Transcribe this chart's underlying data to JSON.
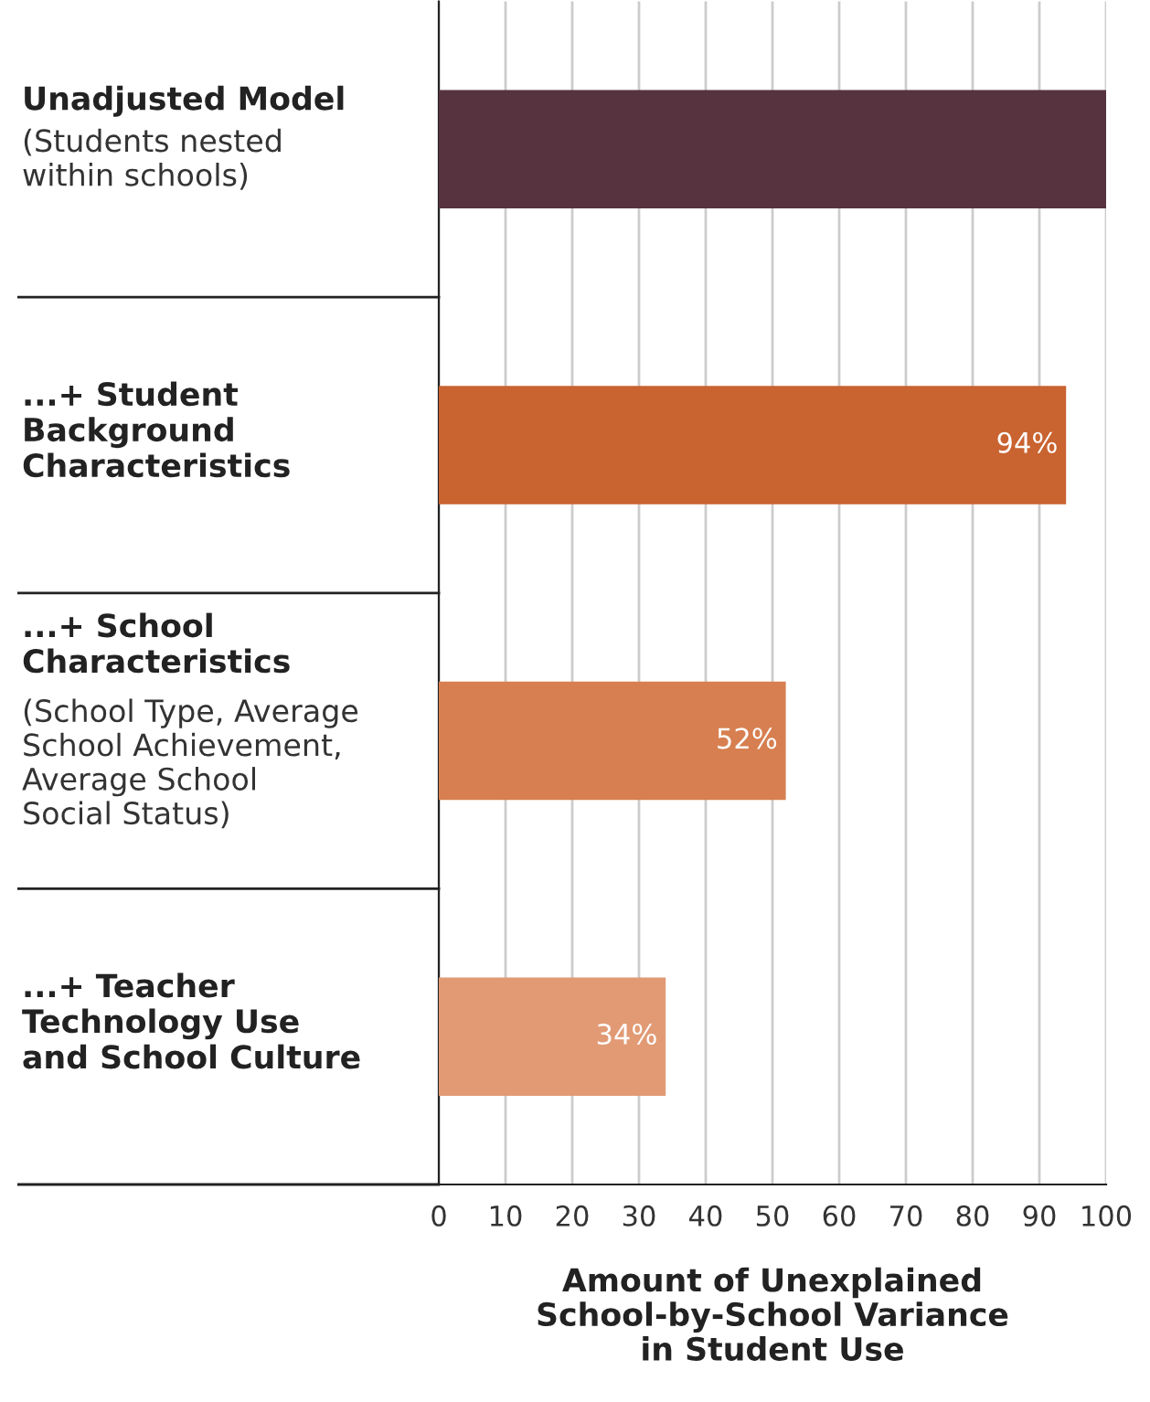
{
  "chart_data": {
    "type": "bar",
    "orientation": "horizontal",
    "categories": [
      "Unadjusted Model\n(Students nested\nwithin schools)",
      "...+ Student\nBackground\nCharacteristics",
      "...+ School\nCharacteristics\n(School Type, Average\nSchool Achievement,\nAverage School\nSocial Status)",
      "...+ Teacher\nTechnology Use\nand School Culture"
    ],
    "values": [
      100,
      94,
      52,
      34
    ],
    "colors": [
      "#56333e",
      "#c96330",
      "#d77f50",
      "#e19a74"
    ],
    "value_labels": [
      null,
      "94%",
      "52%",
      "34%"
    ],
    "xlabel": "Amount of Unexplained\nSchool-by-School Variance\nin Student Use",
    "xlim": [
      0,
      100
    ],
    "xticks": [
      0,
      10,
      20,
      30,
      40,
      50,
      60,
      70,
      80,
      90,
      100
    ],
    "grid": "x"
  }
}
